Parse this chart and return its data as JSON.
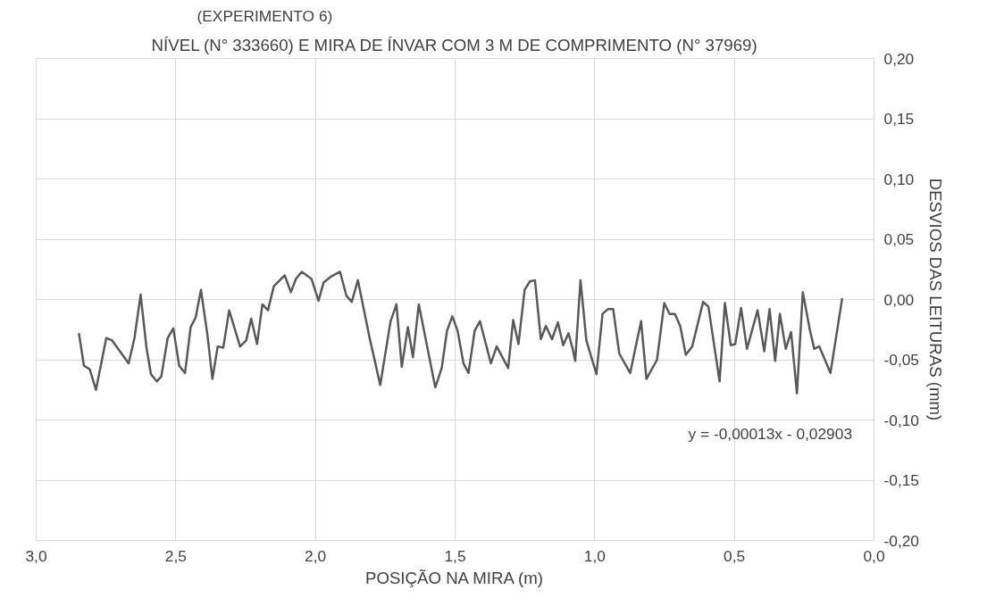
{
  "chart_data": {
    "type": "line",
    "title": "NÍVEL (N° 333660) E MIRA DE ÍNVAR COM 3 M DE COMPRIMENTO (N° 37969)",
    "xlabel": "POSIÇÃO NA MIRA (m)",
    "ylabel": "DESVIOS DAS LEITURAS (mm)",
    "annotations": [
      "(EXPERIMENTO 6)",
      "y = -0,00013x - 0,02903"
    ],
    "x": [
      2.847,
      2.829,
      2.808,
      2.786,
      2.749,
      2.728,
      2.669,
      2.648,
      2.626,
      2.605,
      2.589,
      2.568,
      2.552,
      2.529,
      2.509,
      2.488,
      2.467,
      2.447,
      2.429,
      2.41,
      2.387,
      2.369,
      2.35,
      2.33,
      2.309,
      2.27,
      2.248,
      2.23,
      2.209,
      2.19,
      2.17,
      2.149,
      2.11,
      2.088,
      2.07,
      2.049,
      2.014,
      1.989,
      1.971,
      1.944,
      1.912,
      1.889,
      1.87,
      1.848,
      1.806,
      1.768,
      1.731,
      1.71,
      1.691,
      1.669,
      1.651,
      1.63,
      1.571,
      1.548,
      1.529,
      1.51,
      1.491,
      1.47,
      1.452,
      1.43,
      1.411,
      1.372,
      1.351,
      1.31,
      1.292,
      1.273,
      1.251,
      1.232,
      1.214,
      1.193,
      1.175,
      1.153,
      1.132,
      1.113,
      1.094,
      1.079,
      1.07,
      1.051,
      1.03,
      0.994,
      0.972,
      0.953,
      0.934,
      0.912,
      0.873,
      0.834,
      0.815,
      0.777,
      0.751,
      0.732,
      0.713,
      0.694,
      0.674,
      0.651,
      0.612,
      0.593,
      0.553,
      0.534,
      0.513,
      0.497,
      0.476,
      0.455,
      0.417,
      0.393,
      0.374,
      0.354,
      0.337,
      0.316,
      0.297,
      0.276,
      0.255,
      0.23,
      0.214,
      0.196,
      0.156,
      0.114
    ],
    "series": [
      {
        "color": "#595959",
        "values": [
          -0.028,
          -0.055,
          -0.058,
          -0.075,
          -0.032,
          -0.034,
          -0.053,
          -0.032,
          0.004,
          -0.04,
          -0.062,
          -0.068,
          -0.064,
          -0.032,
          -0.024,
          -0.055,
          -0.061,
          -0.023,
          -0.015,
          0.008,
          -0.029,
          -0.066,
          -0.039,
          -0.04,
          -0.009,
          -0.039,
          -0.034,
          -0.016,
          -0.037,
          -0.004,
          -0.009,
          0.011,
          0.02,
          0.006,
          0.017,
          0.023,
          0.017,
          -0.001,
          0.014,
          0.019,
          0.023,
          0.003,
          -0.002,
          0.016,
          -0.032,
          -0.071,
          -0.018,
          -0.004,
          -0.056,
          -0.023,
          -0.048,
          -0.004,
          -0.073,
          -0.057,
          -0.026,
          -0.014,
          -0.026,
          -0.053,
          -0.061,
          -0.026,
          -0.018,
          -0.053,
          -0.039,
          -0.057,
          -0.017,
          -0.037,
          0.008,
          0.015,
          0.016,
          -0.033,
          -0.022,
          -0.033,
          -0.019,
          -0.038,
          -0.028,
          -0.041,
          -0.051,
          0.016,
          -0.034,
          -0.062,
          -0.012,
          -0.008,
          -0.008,
          -0.045,
          -0.061,
          -0.018,
          -0.066,
          -0.05,
          -0.003,
          -0.012,
          -0.012,
          -0.022,
          -0.046,
          -0.039,
          -0.002,
          -0.006,
          -0.068,
          -0.003,
          -0.038,
          -0.037,
          -0.007,
          -0.041,
          -0.009,
          -0.043,
          -0.008,
          -0.051,
          -0.012,
          -0.041,
          -0.027,
          -0.078,
          0.006,
          -0.025,
          -0.041,
          -0.039,
          -0.061,
          0.001
        ]
      }
    ],
    "xlim": [
      3.0,
      0.0
    ],
    "xticks": [
      {
        "value": 3.0,
        "label": "3,0"
      },
      {
        "value": 2.5,
        "label": "2,5"
      },
      {
        "value": 2.0,
        "label": "2,0"
      },
      {
        "value": 1.5,
        "label": "1,5"
      },
      {
        "value": 1.0,
        "label": "1,0"
      },
      {
        "value": 0.5,
        "label": "0,5"
      },
      {
        "value": 0.0,
        "label": "0,0"
      }
    ],
    "ylim": [
      -0.2,
      0.2
    ],
    "yticks": [
      {
        "value": -0.2,
        "label": "-0,20"
      },
      {
        "value": -0.15,
        "label": "-0,15"
      },
      {
        "value": -0.1,
        "label": "-0,10"
      },
      {
        "value": -0.05,
        "label": "-0,05"
      },
      {
        "value": 0.0,
        "label": "0,00"
      },
      {
        "value": 0.05,
        "label": "0,05"
      },
      {
        "value": 0.1,
        "label": "0,10"
      },
      {
        "value": 0.15,
        "label": "0,15"
      },
      {
        "value": 0.2,
        "label": "0,20"
      }
    ],
    "grid": true,
    "marker": "none",
    "line_style": "solid"
  }
}
